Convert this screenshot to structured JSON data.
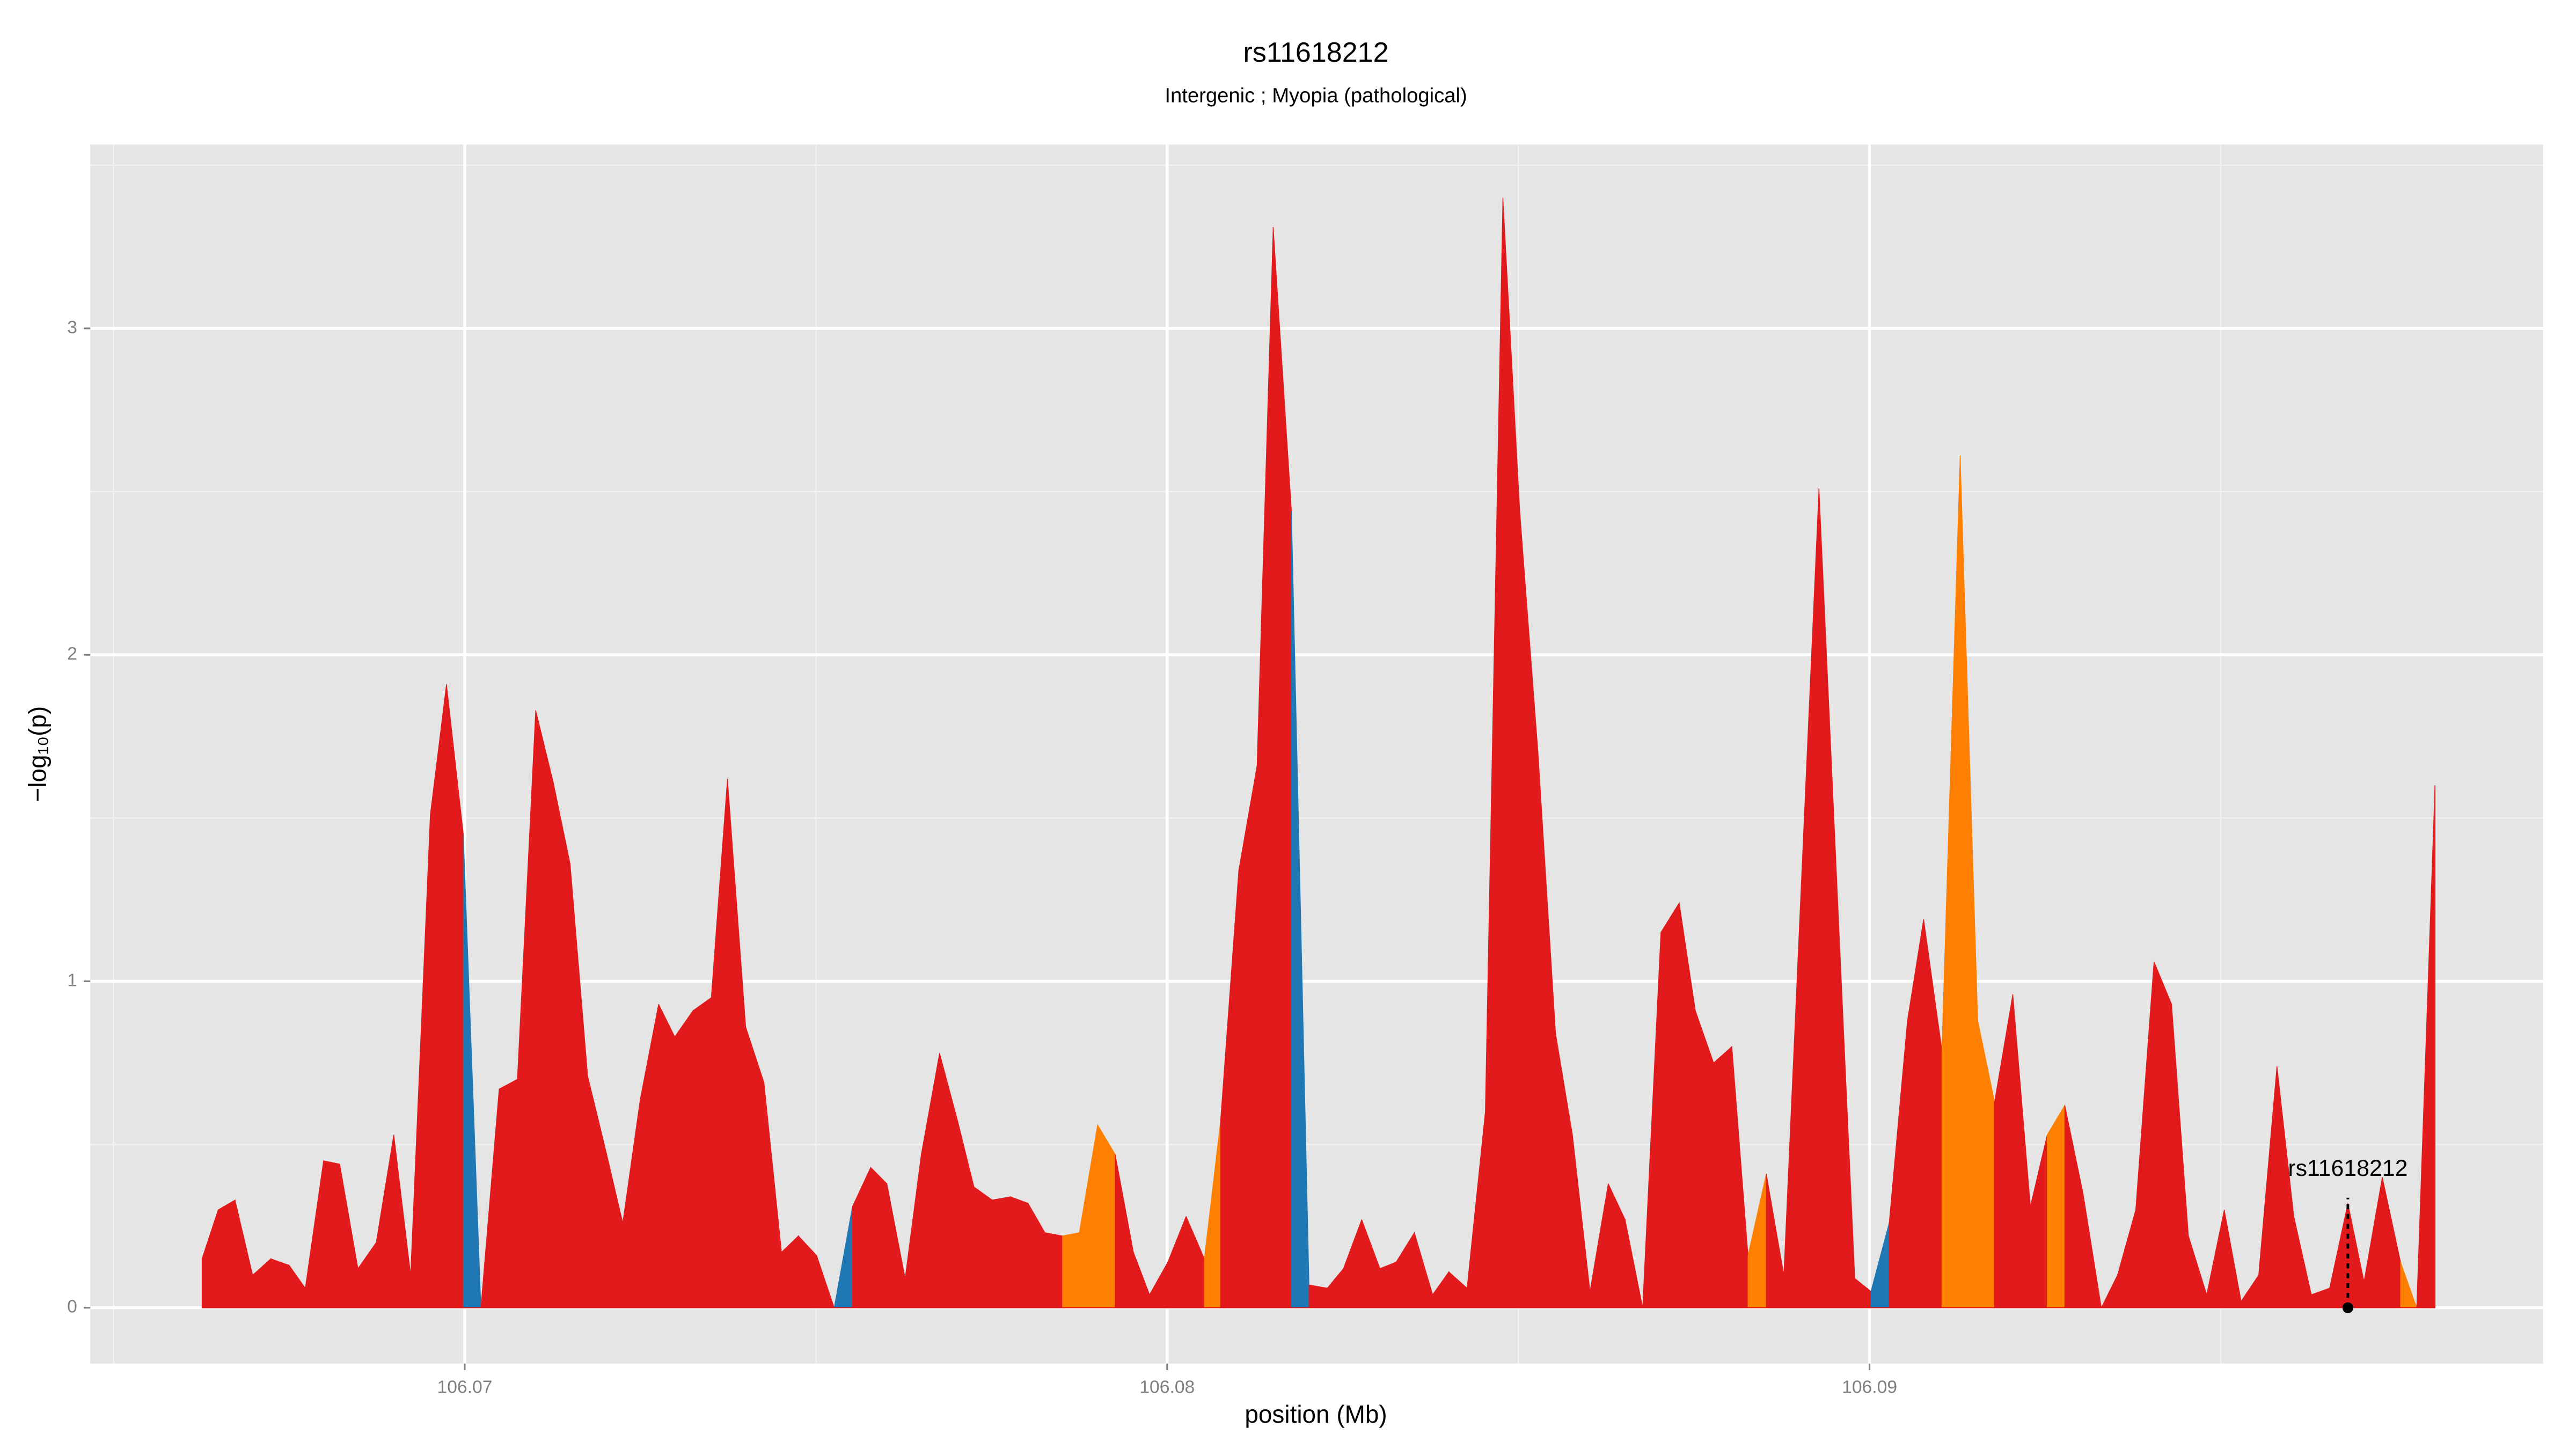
{
  "chart_data": {
    "type": "area",
    "title": "rs11618212",
    "subtitle": "Intergenic ; Myopia (pathological)",
    "xlabel": "position (Mb)",
    "ylabel": "−log₁₀(p)",
    "xlim": [
      106.06467,
      106.09959
    ],
    "ylim": [
      -0.171,
      3.563
    ],
    "xticks": [
      106.07,
      106.08,
      106.09
    ],
    "yticks": [
      0,
      1,
      2,
      3
    ],
    "xminor": [
      106.065,
      106.075,
      106.085,
      106.095
    ],
    "yminor": [
      0.5,
      1.5,
      2.5,
      3.5
    ],
    "grid": true,
    "x": [
      106.06626,
      106.06649,
      106.06673,
      106.06698,
      106.06724,
      106.0675,
      106.06773,
      106.06799,
      106.06822,
      106.06848,
      106.06874,
      106.06899,
      106.06923,
      106.06951,
      106.06974,
      106.06998,
      106.07023,
      106.07049,
      106.07075,
      106.07101,
      106.07126,
      106.0715,
      106.07175,
      106.07201,
      106.07225,
      106.0725,
      106.07276,
      106.07299,
      106.07325,
      106.07351,
      106.07374,
      106.074,
      106.07426,
      106.07451,
      106.07475,
      106.07501,
      106.07526,
      106.07552,
      106.07578,
      106.07601,
      106.07627,
      106.0765,
      106.07676,
      106.07702,
      106.07725,
      106.07751,
      106.07777,
      106.07802,
      106.07826,
      106.07851,
      106.07875,
      106.07901,
      106.07926,
      106.07952,
      106.07975,
      106.08001,
      106.08027,
      106.08053,
      106.08076,
      106.08102,
      106.08128,
      106.08151,
      106.08177,
      106.08202,
      106.08228,
      106.08251,
      106.08277,
      106.08303,
      106.08326,
      106.08352,
      106.08378,
      106.08401,
      106.08427,
      106.08453,
      106.08478,
      106.08502,
      106.08528,
      106.08553,
      106.08577,
      106.08602,
      106.08628,
      106.08652,
      106.08677,
      106.08703,
      106.08729,
      106.08752,
      106.08778,
      106.08804,
      106.08827,
      106.08853,
      106.08878,
      106.08928,
      106.08979,
      106.09002,
      106.09028,
      106.09054,
      106.09077,
      106.09103,
      106.09129,
      106.09154,
      106.09178,
      106.09204,
      106.09229,
      106.09253,
      106.09278,
      106.09304,
      106.0933,
      106.09353,
      106.09379,
      106.09405,
      106.0943,
      106.09454,
      106.0948,
      106.09505,
      106.09529,
      106.09554,
      106.0958,
      106.09604,
      106.09629,
      106.09655,
      106.09681,
      106.09704,
      106.0973,
      106.09756,
      106.09779,
      106.09805
    ],
    "values": [
      0.15,
      0.3,
      0.33,
      0.1,
      0.15,
      0.13,
      0.06,
      0.45,
      0.44,
      0.12,
      0.2,
      0.53,
      0.1,
      1.51,
      1.91,
      1.45,
      0,
      0.67,
      0.7,
      1.83,
      1.61,
      1.36,
      0.71,
      0.48,
      0.26,
      0.64,
      0.93,
      0.83,
      0.91,
      0.95,
      1.62,
      0.86,
      0.69,
      0.17,
      0.22,
      0.16,
      0,
      0.31,
      0.43,
      0.38,
      0.09,
      0.47,
      0.78,
      0.57,
      0.37,
      0.33,
      0.34,
      0.32,
      0.23,
      0.22,
      0.23,
      0.56,
      0.47,
      0.17,
      0.04,
      0.14,
      0.28,
      0.15,
      0.57,
      1.34,
      1.66,
      3.31,
      2.44,
      0.07,
      0.06,
      0.12,
      0.27,
      0.12,
      0.14,
      0.23,
      0.04,
      0.11,
      0.06,
      0.6,
      3.4,
      2.44,
      1.7,
      0.84,
      0.53,
      0.05,
      0.38,
      0.27,
      0,
      1.15,
      1.24,
      0.91,
      0.75,
      0.8,
      0.16,
      0.41,
      0.1,
      2.51,
      0.09,
      0.05,
      0.26,
      0.88,
      1.19,
      0.79,
      2.61,
      0.88,
      0.63,
      0.96,
      0.31,
      0.53,
      0.62,
      0.35,
      0,
      0.1,
      0.3,
      1.06,
      0.93,
      0.22,
      0.04,
      0.3,
      0.02,
      0.1,
      0.74,
      0.28,
      0.04,
      0.06,
      0.32,
      0.08,
      0.4,
      0.14,
      0,
      1.6
    ],
    "colors": [
      "#e31a1c",
      "#e31a1c",
      "#e31a1c",
      "#e31a1c",
      "#e31a1c",
      "#e31a1c",
      "#e31a1c",
      "#e31a1c",
      "#e31a1c",
      "#e31a1c",
      "#e31a1c",
      "#e31a1c",
      "#e31a1c",
      "#e31a1c",
      "#e31a1c",
      "#1f78b4",
      "#e31a1c",
      "#e31a1c",
      "#e31a1c",
      "#e31a1c",
      "#e31a1c",
      "#e31a1c",
      "#e31a1c",
      "#e31a1c",
      "#e31a1c",
      "#e31a1c",
      "#e31a1c",
      "#e31a1c",
      "#e31a1c",
      "#e31a1c",
      "#e31a1c",
      "#e31a1c",
      "#e31a1c",
      "#e31a1c",
      "#e31a1c",
      "#e31a1c",
      "#1f78b4",
      "#e31a1c",
      "#e31a1c",
      "#e31a1c",
      "#e31a1c",
      "#e31a1c",
      "#e31a1c",
      "#e31a1c",
      "#e31a1c",
      "#e31a1c",
      "#e31a1c",
      "#e31a1c",
      "#e31a1c",
      "#ff7f00",
      "#ff7f00",
      "#ff7f00",
      "#e31a1c",
      "#e31a1c",
      "#e31a1c",
      "#e31a1c",
      "#e31a1c",
      "#ff7f00",
      "#e31a1c",
      "#e31a1c",
      "#e31a1c",
      "#e31a1c",
      "#1f78b4",
      "#e31a1c",
      "#e31a1c",
      "#e31a1c",
      "#e31a1c",
      "#e31a1c",
      "#e31a1c",
      "#e31a1c",
      "#e31a1c",
      "#e31a1c",
      "#e31a1c",
      "#e31a1c",
      "#e31a1c",
      "#e31a1c",
      "#e31a1c",
      "#e31a1c",
      "#e31a1c",
      "#e31a1c",
      "#e31a1c",
      "#e31a1c",
      "#e31a1c",
      "#e31a1c",
      "#e31a1c",
      "#e31a1c",
      "#e31a1c",
      "#e31a1c",
      "#ff7f00",
      "#e31a1c",
      "#e31a1c",
      "#e31a1c",
      "#e31a1c",
      "#1f78b4",
      "#e31a1c",
      "#e31a1c",
      "#e31a1c",
      "#ff7f00",
      "#ff7f00",
      "#ff7f00",
      "#e31a1c",
      "#e31a1c",
      "#e31a1c",
      "#ff7f00",
      "#e31a1c",
      "#e31a1c",
      "#e31a1c",
      "#e31a1c",
      "#e31a1c",
      "#e31a1c",
      "#e31a1c",
      "#e31a1c",
      "#e31a1c",
      "#e31a1c",
      "#e31a1c",
      "#e31a1c",
      "#e31a1c",
      "#e31a1c",
      "#e31a1c",
      "#e31a1c",
      "#e31a1c",
      "#e31a1c",
      "#e31a1c",
      "#ff7f00",
      "#e31a1c",
      "#e31a1c"
    ],
    "annotation": {
      "text": "rs11618212",
      "x": 106.09681,
      "y": 0
    }
  }
}
